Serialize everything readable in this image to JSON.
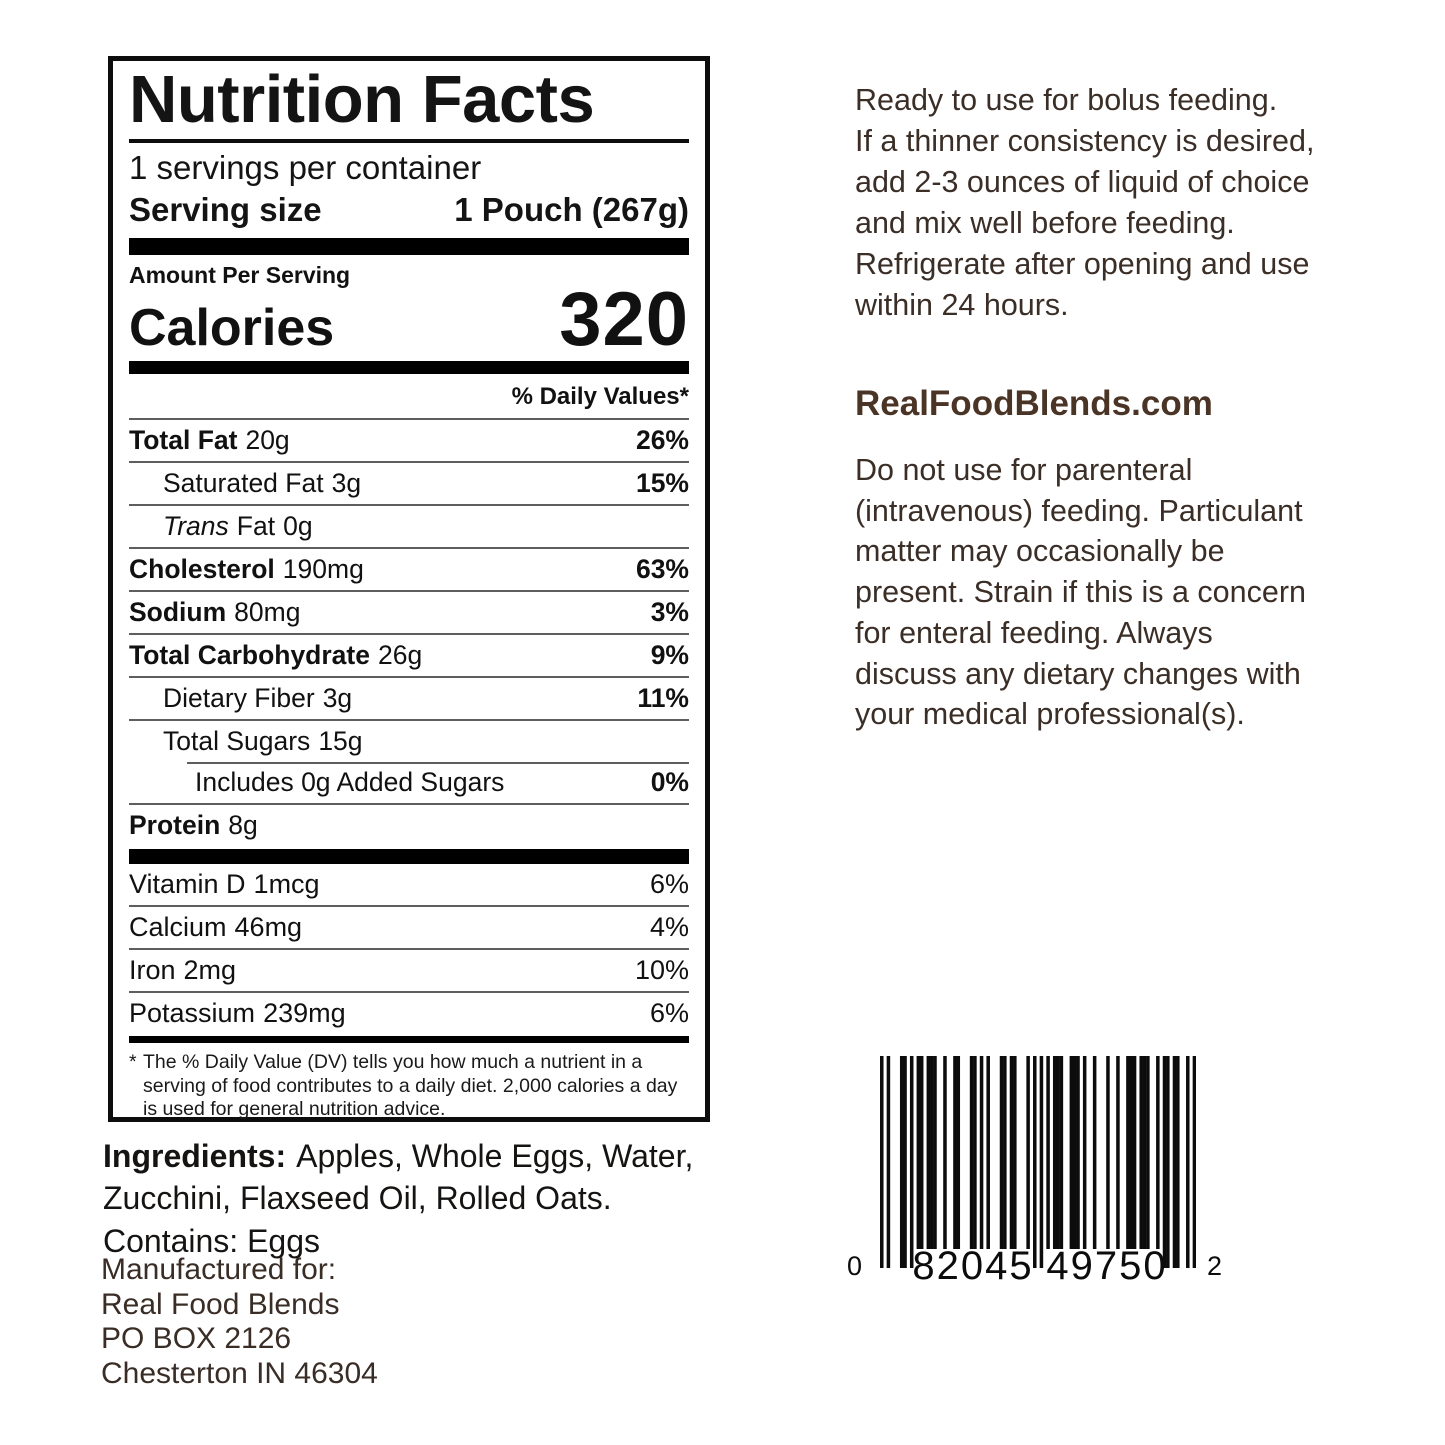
{
  "nutrition_label": {
    "title": "Nutrition Facts",
    "servings_per_container": "1 servings per container",
    "serving_size": {
      "label": "Serving size",
      "value": "1 Pouch (267g)"
    },
    "amount_per_serving": "Amount Per Serving",
    "calories": {
      "label": "Calories",
      "value": "320"
    },
    "daily_values_header": "% Daily Values*",
    "rows": [
      {
        "name": "Total Fat",
        "amount": "20g",
        "dv": "26%"
      },
      {
        "name": "Saturated Fat",
        "amount": "3g",
        "dv": "15%"
      },
      {
        "name_italic": "Trans",
        "name": "Fat",
        "amount": "0g",
        "dv": ""
      },
      {
        "name": "Cholesterol",
        "amount": "190mg",
        "dv": "63%"
      },
      {
        "name": "Sodium",
        "amount": "80mg",
        "dv": "3%"
      },
      {
        "name": "Total Carbohydrate",
        "amount": "26g",
        "dv": "9%"
      },
      {
        "name": "Dietary Fiber",
        "amount": "3g",
        "dv": "11%"
      },
      {
        "name": "Total Sugars",
        "amount": "15g",
        "dv": ""
      },
      {
        "name": "Includes 0g Added Sugars",
        "amount": "",
        "dv": "0%"
      },
      {
        "name": "Protein",
        "amount": "8g",
        "dv": ""
      }
    ],
    "micronutrients": [
      {
        "name": "Vitamin D",
        "amount": "1mcg",
        "dv": "6%"
      },
      {
        "name": "Calcium",
        "amount": "46mg",
        "dv": "4%"
      },
      {
        "name": "Iron",
        "amount": "2mg",
        "dv": "10%"
      },
      {
        "name": "Potassium",
        "amount": "239mg",
        "dv": "6%"
      }
    ],
    "footnote_marker": "*",
    "footnote": "The % Daily Value (DV) tells you how much a nutrient in a serving of food contributes to a daily diet. 2,000 calories a day is used for general nutrition advice."
  },
  "ingredients": {
    "label": "Ingredients:",
    "list": "Apples, Whole Eggs, Water, Zucchini, Flaxseed Oil, Rolled Oats.",
    "contains": "Contains: Eggs"
  },
  "manufacturer": {
    "lines": [
      "Manufactured for:",
      "Real Food Blends",
      "PO BOX 2126",
      "Chesterton IN 46304"
    ]
  },
  "right_column": {
    "usage_paragraph": [
      "Ready to use for bolus feeding.",
      "If a thinner consistency is desired,",
      "add 2-3 ounces of liquid of choice",
      "and mix well before feeding.",
      "Refrigerate after opening and use",
      "within 24 hours."
    ],
    "website": "RealFoodBlends.com",
    "warning_paragraph": [
      "Do not use for parenteral",
      "(intravenous) feeding. Particulant",
      "matter may occasionally be",
      "present. Strain if this is a concern",
      "for enteral feeding.  Always",
      "discuss any dietary changes with",
      "your medical professional(s)."
    ]
  },
  "barcode": {
    "digits": "082045497502",
    "number_system": "0",
    "left_group": "82045",
    "right_group": "49750",
    "check_digit": "2"
  },
  "colors": {
    "label_text": "#141414",
    "brown_heading": "#4a3426",
    "brown_text": "#3a2e27",
    "bar": "#000000"
  }
}
